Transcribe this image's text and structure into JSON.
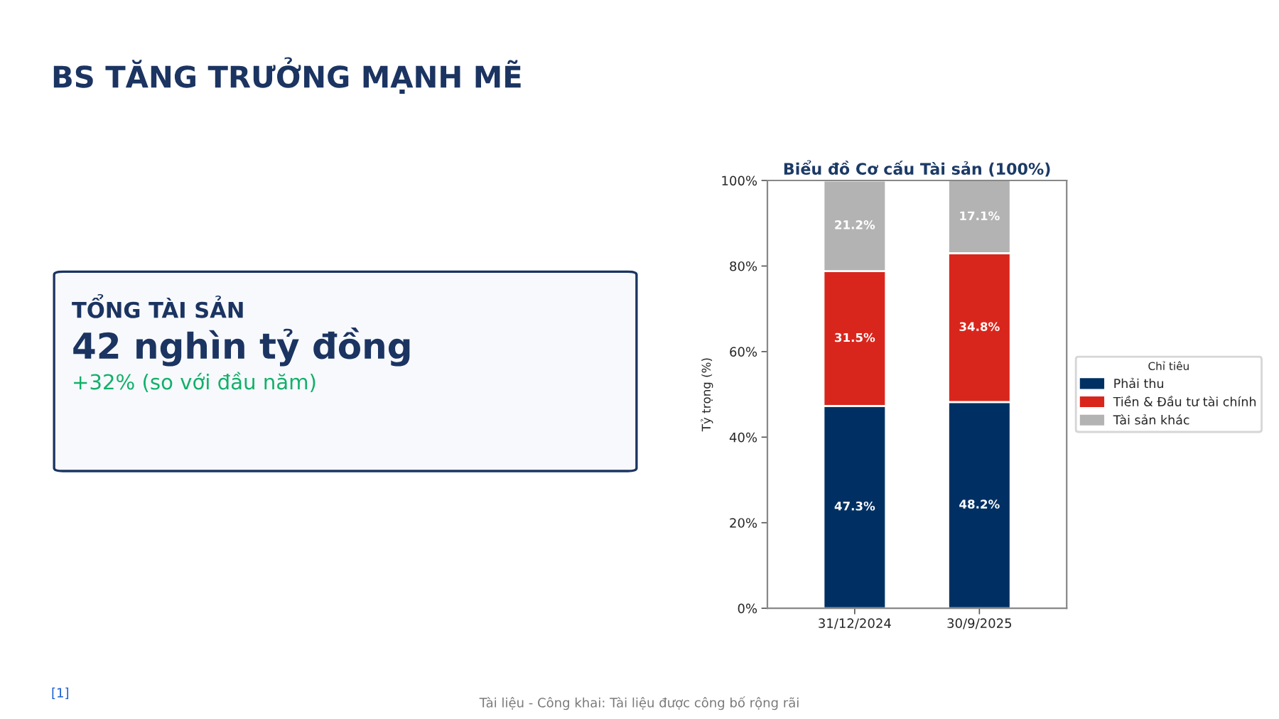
{
  "chart_data": [
    {
      "type": "other",
      "title": "BS TĂNG TRƯỞNG MẠNH MẼ",
      "annotations": [
        "TỔNG TÀI SẢN",
        "42 nghìn tỷ đồng",
        "+32% (so với đầu năm)",
        "[1]",
        "Tài liệu - Công khai: Tài liệu được công bố rộng rãi"
      ]
    },
    {
      "type": "bar",
      "title": "Biểu đồ Cơ cấu Tài sản (100%)",
      "ylabel": "Tỷ trọng (%)",
      "legend_title": "Chỉ tiêu",
      "categories": [
        "31/12/2024",
        "30/9/2025"
      ],
      "stacked": true,
      "series": [
        {
          "name": "Phải thu",
          "color": "#003063",
          "values": [
            47.3,
            48.2
          ],
          "value_labels": [
            "47.3%",
            "48.2%"
          ]
        },
        {
          "name": "Tiền & Đầu tư tài chính",
          "color": "#d9261c",
          "values": [
            31.5,
            34.8
          ],
          "value_labels": [
            "31.5%",
            "34.8%"
          ]
        },
        {
          "name": "Tài sản khác",
          "color": "#b3b3b3",
          "values": [
            21.2,
            17.1
          ],
          "value_labels": [
            "21.2%",
            "17.1%"
          ]
        }
      ],
      "ylim": [
        0,
        100
      ],
      "yticks": [
        {
          "value": 0,
          "label": "0%"
        },
        {
          "value": 20,
          "label": "20%"
        },
        {
          "value": 40,
          "label": "40%"
        },
        {
          "value": 60,
          "label": "60%"
        },
        {
          "value": 80,
          "label": "80%"
        },
        {
          "value": 100,
          "label": "100%"
        }
      ],
      "legend": "right",
      "grid": false
    }
  ]
}
